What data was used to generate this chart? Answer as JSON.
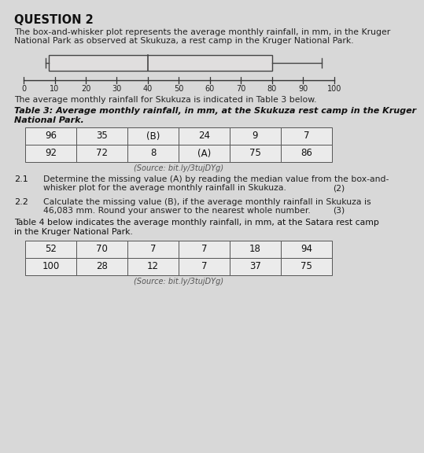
{
  "title": "QUESTION 2",
  "intro_line1": "The box-and-whisker plot represents the average monthly rainfall, in mm, in the Kruger",
  "intro_line2": "National Park as observed at Skukuza, a rest camp in the Kruger National Park.",
  "boxplot": {
    "min": 7,
    "q1": 8,
    "median": 40,
    "q3": 80,
    "max": 96
  },
  "axis_min": 0,
  "axis_max": 100,
  "axis_ticks": [
    0,
    10,
    20,
    30,
    40,
    50,
    60,
    70,
    80,
    90,
    100
  ],
  "table3_caption": "The average monthly rainfall for Skukuza is indicated in Table 3 below.",
  "table3_title_line1": "Table 3: Average monthly rainfall, in mm, at the Skukuza rest camp in the Kruger",
  "table3_title_line2": "National Park.",
  "table3_row1": [
    "96",
    "35",
    "(B)",
    "24",
    "9",
    "7"
  ],
  "table3_row2": [
    "92",
    "72",
    "8",
    "(A)",
    "75",
    "86"
  ],
  "table3_source": "(Source: bit.ly/3tujDYg)",
  "q21_num": "2.1",
  "q21_line1": "Determine the missing value (A) by reading the median value from the box-and-",
  "q21_line2": "whisker plot for the average monthly rainfall in Skukuza.",
  "q21_marks": "(2)",
  "q22_num": "2.2",
  "q22_line1": "Calculate the missing value (B), if the average monthly rainfall in Skukuza is",
  "q22_line2": "46,083 mm. Round your answer to the nearest whole number.",
  "q22_marks": "(3)",
  "table4_caption_line1": "Table 4 below indicates the average monthly rainfall, in mm, at the Satara rest camp",
  "table4_caption_line2": "in the Kruger National Park.",
  "table4_row1": [
    "52",
    "70",
    "7",
    "7",
    "18",
    "94"
  ],
  "table4_row2": [
    "100",
    "28",
    "12",
    "7",
    "37",
    "75"
  ],
  "table4_source": "(Source: bit.ly/3tujDYg)",
  "bg_color": "#d8d8d8"
}
